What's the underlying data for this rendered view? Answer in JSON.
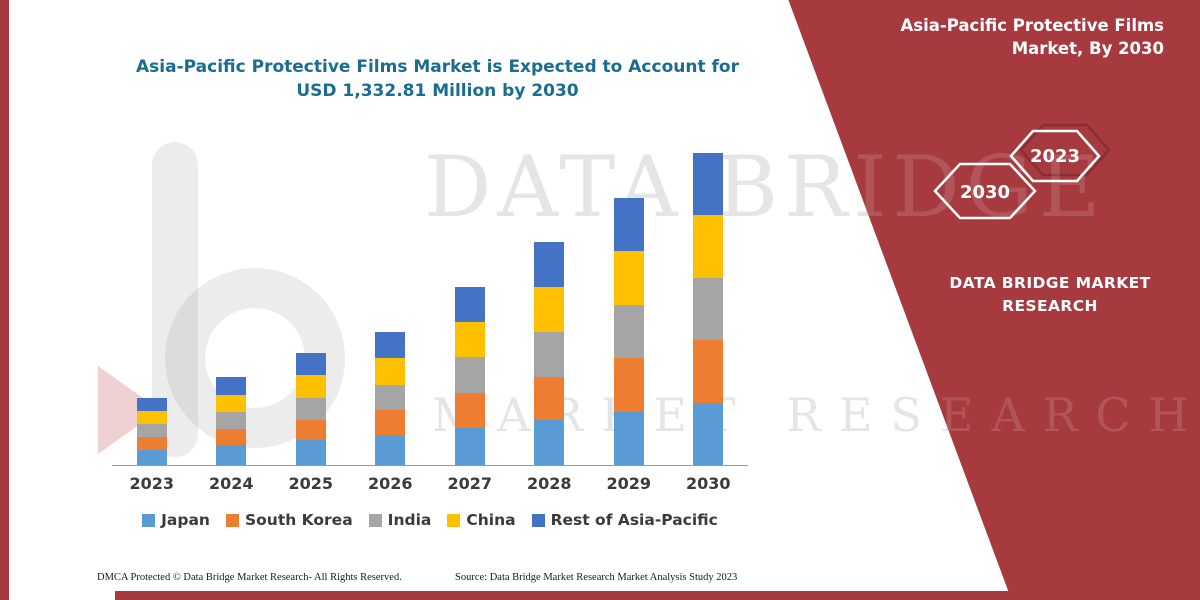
{
  "header": {
    "title_line1": "Asia-Pacific Protective Films Market is Expected to Account for",
    "title_line2": "USD 1,332.81 Million by 2030",
    "title_color": "#1A6C91"
  },
  "side_panel": {
    "background_color": "#A63A3F",
    "title": "Asia-Pacific Protective Films Market, By 2030",
    "hexagon_left": "2030",
    "hexagon_right": "2023",
    "brand_line1": "DATA BRIDGE MARKET",
    "brand_line2": "RESEARCH"
  },
  "watermark": {
    "line1": "DATA BRIDGE",
    "line2": "MARKET RESEARCH"
  },
  "footer": {
    "dmca": "DMCA Protected © Data Bridge Market Research- All Rights Reserved.",
    "source": "Source: Data Bridge Market Research Market Analysis Study 2023"
  },
  "chart_data": {
    "type": "bar",
    "stacked": true,
    "title": "Asia-Pacific Protective Films Market is Expected to Account for USD 1,332.81 Million by 2030",
    "unit": "USD Million",
    "categories": [
      "2023",
      "2024",
      "2025",
      "2026",
      "2027",
      "2028",
      "2029",
      "2030"
    ],
    "series": [
      {
        "name": "Japan",
        "color": "#5B9BD5",
        "values": [
          64,
          85,
          107,
          128,
          158,
          192,
          226,
          265
        ]
      },
      {
        "name": "South Korea",
        "color": "#ED7D31",
        "values": [
          56,
          68,
          85,
          107,
          150,
          184,
          231,
          269
        ]
      },
      {
        "name": "India",
        "color": "#A5A5A5",
        "values": [
          56,
          73,
          94,
          107,
          154,
          192,
          226,
          265
        ]
      },
      {
        "name": "China",
        "color": "#FFC000",
        "values": [
          56,
          73,
          98,
          115,
          150,
          192,
          231,
          269
        ]
      },
      {
        "name": "Rest of Asia-Pacific",
        "color": "#4472C4",
        "values": [
          56,
          77,
          94,
          111,
          150,
          192,
          226,
          264.81
        ]
      }
    ],
    "totals_estimated": [
      288,
      376,
      478,
      568,
      762,
      952,
      1140,
      1332.81
    ],
    "ylim": [
      0,
      1400
    ],
    "gridlines": false,
    "y_axis_labels_visible": false,
    "legend_position": "bottom",
    "note": "Segment values estimated from bar heights; 2030 total equals USD 1,332.81 Million as stated in the title."
  }
}
